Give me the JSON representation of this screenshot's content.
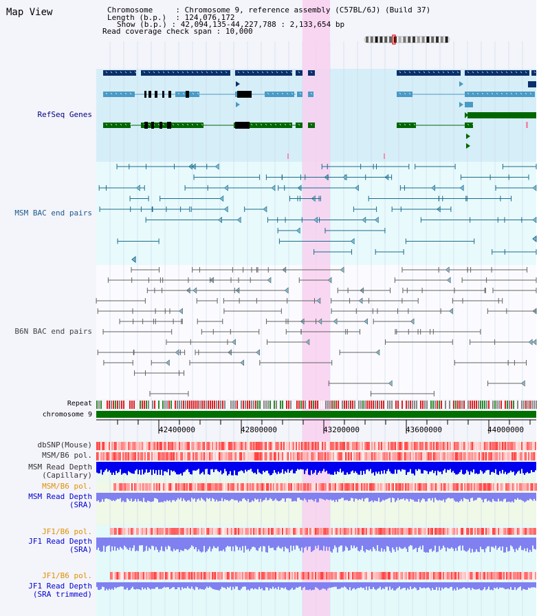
{
  "title": "Map View",
  "header": {
    "chromosome_key": "Chromosome",
    "chromosome_value": "Chromosome 9, reference assembly (C57BL/6J) (Build 37)",
    "length_key": "Length (b.p.)",
    "length_value": "124,076,172",
    "show_key": "Show (b.p.)",
    "show_value": "42,094,135-44,227,788 : 2,133,654 bp",
    "coverage_key": "Read coverage check span",
    "coverage_value": "10,000"
  },
  "tracks": {
    "refseq": "RefSeq Genes",
    "msm_bac": "MSM BAC end pairs",
    "b6n_bac": "B6N BAC end pairs",
    "repeat": "Repeat",
    "chromosome": "chromosome 9",
    "dbsnp": "dbSNP(Mouse)",
    "msm_b6_pol_1": "MSM/B6 pol.",
    "msm_depth_cap_1": "MSM Read Depth",
    "msm_depth_cap_2": "(Capillary)",
    "msm_b6_pol_2": "MSM/B6 pol.",
    "msm_depth_sra_1": "MSM Read Depth",
    "msm_depth_sra_2": "(SRA)",
    "jf1_b6_pol_1": "JF1/B6 pol.",
    "jf1_depth_sra_1": "JF1 Read Depth",
    "jf1_depth_sra_2": "(SRA)",
    "jf1_b6_pol_2": "JF1/B6 pol.",
    "jf1_depth_trim_1": "JF1 Read Depth",
    "jf1_depth_trim_2": "(SRA trimmed)"
  },
  "axis": {
    "ticks": [
      "42400000",
      "42800000",
      "43200000",
      "43600000",
      "44000000"
    ]
  },
  "colors": {
    "refseq_bg": "#d6eef8",
    "bac_bg": "#e8fafc",
    "highlight": "#f8d0f0",
    "dark_blue": "#0a2f6a",
    "mid_blue": "#4a9ac4",
    "green": "#006600",
    "bac_line": "#1a6a8a",
    "b6n_line": "#606060",
    "depth_blue": "#0000ee",
    "depth_light": "#8080f0",
    "pol_red": "#ff3030",
    "label_navy": "#000080",
    "label_orange": "#e09000",
    "label_blue": "#0000cc",
    "label_gray": "#333333"
  }
}
